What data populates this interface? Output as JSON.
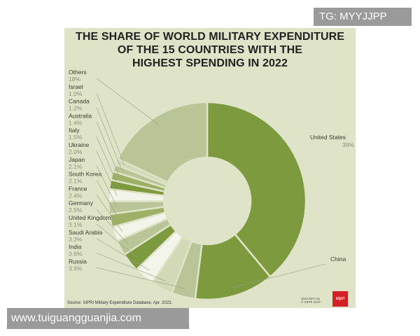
{
  "chart_data": {
    "type": "pie",
    "title_lines": [
      "THE SHARE OF WORLD MILITARY EXPENDITURE",
      "OF THE 15 COUNTRIES WITH THE",
      "HIGHEST SPENDING IN 2022"
    ],
    "slices": [
      {
        "name": "United States",
        "label": "39%",
        "value": 39,
        "color": "#7d9a3e"
      },
      {
        "name": "China",
        "label": "13%",
        "value": 13,
        "color": "#7d9a3e"
      },
      {
        "name": "Russia",
        "label": "3.9%",
        "value": 3.9,
        "color": "#b9c596"
      },
      {
        "name": "India",
        "label": "3.6%",
        "value": 3.6,
        "color": "#d1d9b6"
      },
      {
        "name": "Saudi Arabia",
        "label": "3.3%",
        "value": 3.3,
        "color": "#f3f4ea"
      },
      {
        "name": "United Kingdom",
        "label": "3.1%",
        "value": 3.1,
        "color": "#7d9a3e"
      },
      {
        "name": "Germany",
        "label": "2.5%",
        "value": 2.5,
        "color": "#b9c596"
      },
      {
        "name": "France",
        "label": "2.4%",
        "value": 2.4,
        "color": "#f3f4ea"
      },
      {
        "name": "South Korea",
        "label": "2.1%",
        "value": 2.1,
        "color": "#9db065"
      },
      {
        "name": "Japan",
        "label": "2.1%",
        "value": 2.1,
        "color": "#b9c596"
      },
      {
        "name": "Ukraine",
        "label": "2.0%",
        "value": 2.0,
        "color": "#f3f4ea"
      },
      {
        "name": "Italy",
        "label": "1.5%",
        "value": 1.5,
        "color": "#7d9a3e"
      },
      {
        "name": "Australia",
        "label": "1.4%",
        "value": 1.4,
        "color": "#9db065"
      },
      {
        "name": "Canada",
        "label": "1.2%",
        "value": 1.2,
        "color": "#b9c596"
      },
      {
        "name": "Israel",
        "label": "1.0%",
        "value": 1.0,
        "color": "#d1d9b6"
      },
      {
        "name": "Others",
        "label": "18%",
        "value": 18,
        "color": "#b9c596"
      }
    ],
    "source": "Source: SIPRI Military Expenditure Database, Apr. 2023.",
    "credit_lines": [
      "www.sipri.org",
      "© SIPRI 2023"
    ],
    "logo_text": "sipri"
  },
  "watermarks": {
    "top_right": "TG: MYYJJPP",
    "bottom_left": "www.tuiguangguanjia.com"
  },
  "colors": {
    "background": "#dfe4c8",
    "accent_green": "#7d9a3e"
  }
}
